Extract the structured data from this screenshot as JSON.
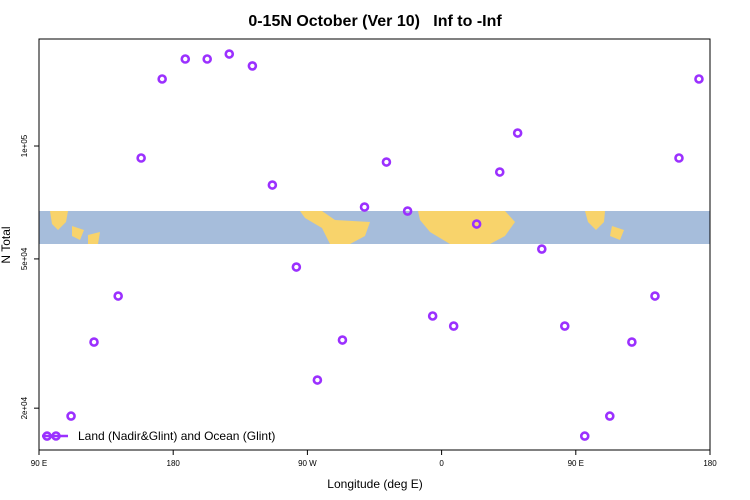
{
  "chart_data": {
    "type": "scatter",
    "title": "0-15N October (Ver 10)   Inf to -Inf",
    "xlabel": "Longitude (deg E)",
    "ylabel": "N Total",
    "ylog": true,
    "xlim": [
      90,
      540
    ],
    "ylim": [
      15470,
      192900
    ],
    "xticks": [
      {
        "value": 90,
        "label": "90 E"
      },
      {
        "value": 180,
        "label": "180"
      },
      {
        "value": 270,
        "label": "90 W"
      },
      {
        "value": 360,
        "label": "0"
      },
      {
        "value": 450,
        "label": "90 E"
      },
      {
        "value": 540,
        "label": "180"
      }
    ],
    "yticks": [
      {
        "value": 20000,
        "label": "2e+04"
      },
      {
        "value": 50000,
        "label": "5e+04"
      },
      {
        "value": 100000,
        "label": "1e+05"
      }
    ],
    "legend": "bottom-left",
    "series": [
      {
        "name": "Land (Nadir&Glint) and Ocean (Glint)",
        "color": "#9b30ff",
        "x": [
          95.4,
          111.5,
          126.9,
          143.1,
          158.5,
          172.6,
          188.1,
          202.8,
          217.6,
          233.1,
          246.5,
          262.6,
          276.7,
          293.5,
          308.3,
          323.0,
          337.2,
          354.0,
          368.1,
          383.5,
          399.0,
          411.0,
          427.2,
          442.6,
          456.0,
          472.8,
          487.6,
          503.1,
          519.2,
          532.6
        ],
        "values": [
          16850,
          19050,
          30010,
          39810,
          92900,
          150900,
          170600,
          170600,
          175900,
          163500,
          78700,
          47570,
          23770,
          30390,
          68760,
          90640,
          67080,
          35220,
          33110,
          61940,
          85240,
          108300,
          53120,
          33110,
          16850,
          19050,
          30010,
          39810,
          92900,
          150900
        ]
      }
    ]
  }
}
